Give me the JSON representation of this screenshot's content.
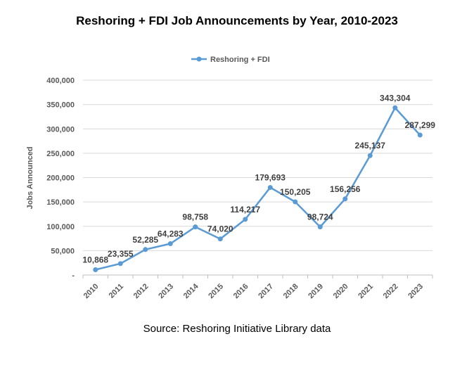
{
  "chart_data": {
    "type": "line",
    "title": "Reshoring + FDI Job Announcements by Year, 2010-2023",
    "xlabel": "",
    "ylabel": "Jobs Announced",
    "source": "Source: Reshoring Initiative Library data",
    "ylim": [
      0,
      400000
    ],
    "y_ticks": [
      0,
      50000,
      100000,
      150000,
      200000,
      250000,
      300000,
      350000,
      400000
    ],
    "y_tick_labels": [
      "-",
      "50,000",
      "100,000",
      "150,000",
      "200,000",
      "250,000",
      "300,000",
      "350,000",
      "400,000"
    ],
    "grid": true,
    "legend_position": "top-center",
    "categories": [
      "2010",
      "2011",
      "2012",
      "2013",
      "2014",
      "2015",
      "2016",
      "2017",
      "2018",
      "2019",
      "2020",
      "2021",
      "2022",
      "2023"
    ],
    "series": [
      {
        "name": "Reshoring + FDI",
        "color": "#5b9bd5",
        "values": [
          10868,
          23355,
          52285,
          64283,
          98758,
          74020,
          114217,
          179693,
          150205,
          98724,
          156256,
          245137,
          343304,
          287299
        ],
        "labels": [
          "10,868",
          "23,355",
          "52,285",
          "64,283",
          "98,758",
          "74,020",
          "114,217",
          "179,693",
          "150,205",
          "98,724",
          "156,256",
          "245,137",
          "343,304",
          "287,299"
        ]
      }
    ]
  }
}
